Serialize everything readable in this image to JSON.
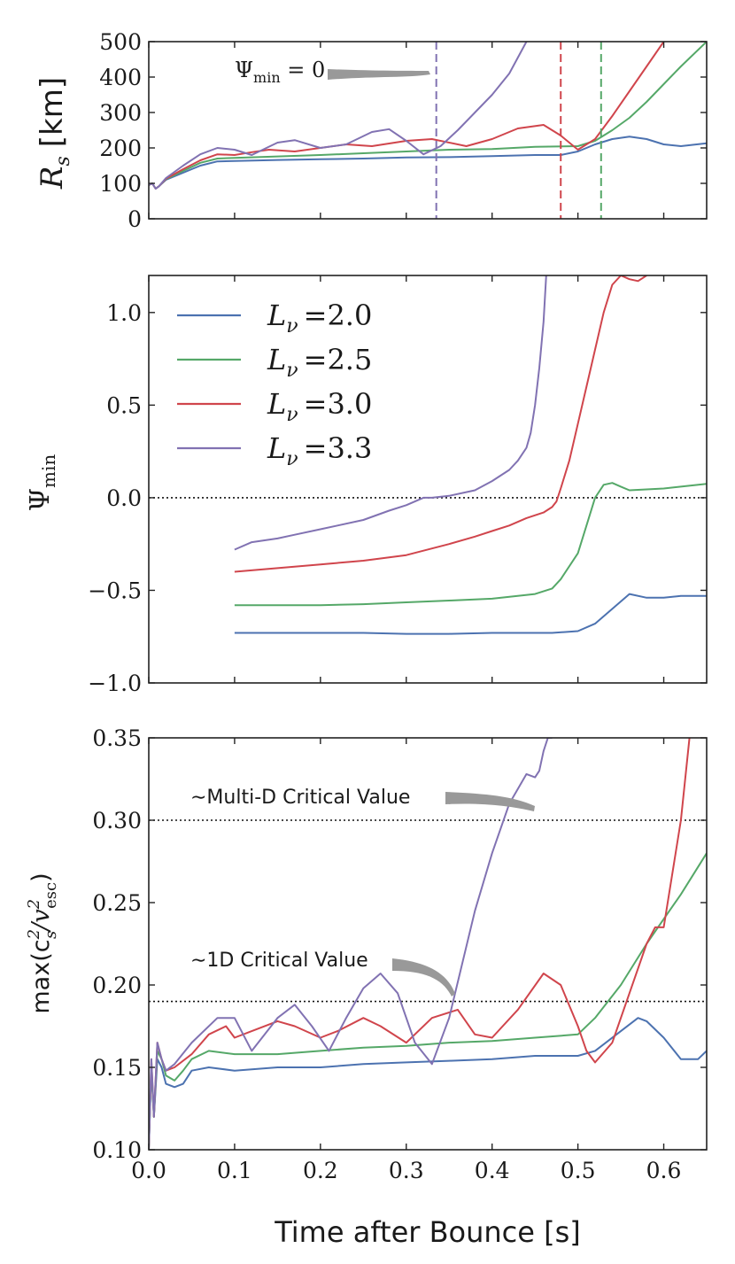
{
  "colors": {
    "L20": "#4c72b0",
    "L25": "#55a868",
    "L30": "#d0454c",
    "L33": "#8172b2",
    "arrow": "#999999"
  },
  "legend": [
    {
      "label": "L",
      "sub": "ν",
      "val": "=2.0",
      "color": "#4c72b0"
    },
    {
      "label": "L",
      "sub": "ν",
      "val": "=2.5",
      "color": "#55a868"
    },
    {
      "label": "L",
      "sub": "ν",
      "val": "=3.0",
      "color": "#d0454c"
    },
    {
      "label": "L",
      "sub": "ν",
      "val": "=3.3",
      "color": "#8172b2"
    }
  ],
  "chart_data": [
    {
      "type": "line",
      "panel": "top",
      "ylabel": "R",
      "ylabel_sub": "s",
      "ylabel_unit": "[km]",
      "xlim": [
        0,
        0.65
      ],
      "ylim": [
        0,
        500
      ],
      "yticks": [
        "0",
        "100",
        "200",
        "300",
        "400",
        "500"
      ],
      "ytick_values": [
        0,
        100,
        200,
        300,
        400,
        500
      ],
      "annotation": {
        "text": "Ψ",
        "sub": "min",
        "rest": " = 0",
        "x": 0.335,
        "y": 405
      },
      "vlines": [
        {
          "x": 0.335,
          "color": "#8172b2"
        },
        {
          "x": 0.48,
          "color": "#d0454c"
        },
        {
          "x": 0.527,
          "color": "#55a868"
        }
      ],
      "series": [
        {
          "name": "L=2.0",
          "color": "#4c72b0",
          "x": [
            0,
            0.004,
            0.008,
            0.012,
            0.02,
            0.04,
            0.06,
            0.08,
            0.1,
            0.15,
            0.2,
            0.25,
            0.3,
            0.35,
            0.4,
            0.45,
            0.48,
            0.5,
            0.52,
            0.54,
            0.56,
            0.58,
            0.6,
            0.62,
            0.65
          ],
          "y": [
            95,
            100,
            85,
            92,
            110,
            130,
            150,
            162,
            163,
            166,
            168,
            170,
            173,
            174,
            177,
            180,
            180,
            190,
            210,
            225,
            232,
            225,
            210,
            205,
            213
          ]
        },
        {
          "name": "L=2.5",
          "color": "#55a868",
          "x": [
            0,
            0.004,
            0.008,
            0.012,
            0.02,
            0.04,
            0.06,
            0.08,
            0.1,
            0.15,
            0.2,
            0.25,
            0.3,
            0.35,
            0.4,
            0.45,
            0.5,
            0.52,
            0.54,
            0.56,
            0.58,
            0.6,
            0.62,
            0.65
          ],
          "y": [
            95,
            100,
            85,
            92,
            112,
            135,
            158,
            170,
            172,
            176,
            180,
            185,
            190,
            195,
            197,
            203,
            205,
            220,
            250,
            285,
            330,
            380,
            430,
            500
          ]
        },
        {
          "name": "L=3.0",
          "color": "#d0454c",
          "x": [
            0,
            0.004,
            0.008,
            0.012,
            0.02,
            0.04,
            0.06,
            0.08,
            0.1,
            0.12,
            0.14,
            0.17,
            0.2,
            0.23,
            0.26,
            0.3,
            0.33,
            0.37,
            0.4,
            0.43,
            0.46,
            0.48,
            0.5,
            0.52,
            0.54,
            0.56,
            0.58,
            0.6
          ],
          "y": [
            95,
            100,
            85,
            92,
            113,
            140,
            165,
            182,
            180,
            188,
            195,
            190,
            200,
            210,
            205,
            220,
            225,
            205,
            225,
            255,
            265,
            235,
            195,
            225,
            290,
            360,
            430,
            500
          ]
        },
        {
          "name": "L=3.3",
          "color": "#8172b2",
          "x": [
            0,
            0.004,
            0.008,
            0.012,
            0.02,
            0.04,
            0.06,
            0.08,
            0.1,
            0.12,
            0.15,
            0.17,
            0.2,
            0.23,
            0.26,
            0.28,
            0.3,
            0.32,
            0.34,
            0.36,
            0.38,
            0.4,
            0.42,
            0.44
          ],
          "y": [
            95,
            100,
            85,
            92,
            115,
            150,
            182,
            200,
            195,
            180,
            215,
            222,
            200,
            210,
            245,
            253,
            220,
            182,
            205,
            250,
            300,
            350,
            410,
            500
          ]
        }
      ]
    },
    {
      "type": "line",
      "panel": "middle",
      "ylabel": "Ψ",
      "ylabel_sub": "min",
      "xlim": [
        0,
        0.65
      ],
      "ylim": [
        -1.0,
        1.2
      ],
      "yticks": [
        "−1.0",
        "−0.5",
        "0.0",
        "0.5",
        "1.0"
      ],
      "ytick_values": [
        -1.0,
        -0.5,
        0.0,
        0.5,
        1.0
      ],
      "hline": 0.0,
      "series": [
        {
          "name": "L=2.0",
          "color": "#4c72b0",
          "x": [
            0.1,
            0.15,
            0.2,
            0.25,
            0.3,
            0.35,
            0.4,
            0.45,
            0.47,
            0.5,
            0.52,
            0.54,
            0.56,
            0.58,
            0.6,
            0.62,
            0.65
          ],
          "y": [
            -0.73,
            -0.73,
            -0.73,
            -0.73,
            -0.735,
            -0.735,
            -0.73,
            -0.73,
            -0.73,
            -0.72,
            -0.68,
            -0.6,
            -0.52,
            -0.54,
            -0.54,
            -0.53,
            -0.53
          ]
        },
        {
          "name": "L=2.5",
          "color": "#55a868",
          "x": [
            0.1,
            0.15,
            0.2,
            0.25,
            0.3,
            0.35,
            0.4,
            0.45,
            0.47,
            0.48,
            0.5,
            0.51,
            0.52,
            0.53,
            0.54,
            0.55,
            0.56,
            0.58,
            0.6,
            0.62,
            0.65
          ],
          "y": [
            -0.58,
            -0.58,
            -0.58,
            -0.575,
            -0.565,
            -0.555,
            -0.545,
            -0.52,
            -0.49,
            -0.44,
            -0.3,
            -0.15,
            0.0,
            0.07,
            0.08,
            0.06,
            0.04,
            0.045,
            0.05,
            0.06,
            0.075
          ]
        },
        {
          "name": "L=3.0",
          "color": "#d0454c",
          "x": [
            0.1,
            0.15,
            0.2,
            0.25,
            0.3,
            0.35,
            0.38,
            0.4,
            0.42,
            0.44,
            0.46,
            0.47,
            0.475,
            0.48,
            0.49,
            0.5,
            0.51,
            0.52,
            0.53,
            0.54,
            0.55,
            0.56,
            0.57,
            0.58
          ],
          "y": [
            -0.4,
            -0.38,
            -0.36,
            -0.34,
            -0.31,
            -0.25,
            -0.21,
            -0.18,
            -0.15,
            -0.11,
            -0.08,
            -0.05,
            -0.02,
            0.05,
            0.2,
            0.4,
            0.6,
            0.8,
            1.0,
            1.15,
            1.2,
            1.18,
            1.17,
            1.2
          ]
        },
        {
          "name": "L=3.3",
          "color": "#8172b2",
          "x": [
            0.1,
            0.12,
            0.15,
            0.17,
            0.2,
            0.22,
            0.25,
            0.28,
            0.3,
            0.32,
            0.33,
            0.35,
            0.38,
            0.4,
            0.42,
            0.43,
            0.44,
            0.445,
            0.45,
            0.455,
            0.46,
            0.463
          ],
          "y": [
            -0.28,
            -0.24,
            -0.22,
            -0.2,
            -0.17,
            -0.15,
            -0.12,
            -0.07,
            -0.04,
            0.0,
            0.0,
            0.01,
            0.04,
            0.09,
            0.15,
            0.2,
            0.27,
            0.35,
            0.5,
            0.7,
            0.95,
            1.2
          ]
        }
      ]
    },
    {
      "type": "line",
      "panel": "bottom",
      "ylabel": "max(c",
      "ylabel_sup1": "2",
      "ylabel_sub1": "s",
      "ylabel_mid": "/v",
      "ylabel_sup2": "2",
      "ylabel_sub2": "esc",
      "ylabel_end": ")",
      "xlabel": "Time after Bounce [s]",
      "xlim": [
        0,
        0.65
      ],
      "ylim": [
        0.1,
        0.35
      ],
      "xticks": [
        "0.0",
        "0.1",
        "0.2",
        "0.3",
        "0.4",
        "0.5",
        "0.6"
      ],
      "xtick_values": [
        0.0,
        0.1,
        0.2,
        0.3,
        0.4,
        0.5,
        0.6
      ],
      "yticks": [
        "0.10",
        "0.15",
        "0.20",
        "0.25",
        "0.30",
        "0.35"
      ],
      "ytick_values": [
        0.1,
        0.15,
        0.2,
        0.25,
        0.3,
        0.35
      ],
      "hlines": [
        0.3,
        0.19
      ],
      "annotations": [
        {
          "text": "∼Multi-D Critical Value",
          "x": 0.44,
          "y": 0.3
        },
        {
          "text": "∼1D Critical Value",
          "x": 0.35,
          "y": 0.19
        }
      ],
      "series": [
        {
          "name": "L=2.0",
          "color": "#4c72b0",
          "x": [
            0,
            0.003,
            0.006,
            0.01,
            0.015,
            0.02,
            0.03,
            0.04,
            0.05,
            0.07,
            0.1,
            0.15,
            0.2,
            0.25,
            0.3,
            0.35,
            0.4,
            0.45,
            0.5,
            0.52,
            0.55,
            0.57,
            0.58,
            0.6,
            0.62,
            0.64,
            0.65
          ],
          "y": [
            0.1,
            0.15,
            0.12,
            0.155,
            0.15,
            0.14,
            0.138,
            0.14,
            0.148,
            0.15,
            0.148,
            0.15,
            0.15,
            0.152,
            0.153,
            0.154,
            0.155,
            0.157,
            0.157,
            0.16,
            0.172,
            0.18,
            0.178,
            0.168,
            0.155,
            0.155,
            0.16
          ]
        },
        {
          "name": "L=2.5",
          "color": "#55a868",
          "x": [
            0,
            0.003,
            0.006,
            0.01,
            0.015,
            0.02,
            0.03,
            0.04,
            0.05,
            0.07,
            0.1,
            0.15,
            0.2,
            0.25,
            0.3,
            0.35,
            0.4,
            0.45,
            0.5,
            0.52,
            0.55,
            0.58,
            0.6,
            0.62,
            0.65
          ],
          "y": [
            0.1,
            0.15,
            0.12,
            0.16,
            0.155,
            0.145,
            0.142,
            0.148,
            0.155,
            0.16,
            0.158,
            0.158,
            0.16,
            0.162,
            0.163,
            0.165,
            0.166,
            0.168,
            0.17,
            0.18,
            0.2,
            0.225,
            0.24,
            0.255,
            0.28
          ]
        },
        {
          "name": "L=3.0",
          "color": "#d0454c",
          "x": [
            0,
            0.003,
            0.006,
            0.01,
            0.015,
            0.02,
            0.03,
            0.05,
            0.07,
            0.09,
            0.1,
            0.12,
            0.15,
            0.17,
            0.2,
            0.22,
            0.25,
            0.27,
            0.3,
            0.33,
            0.36,
            0.38,
            0.4,
            0.43,
            0.46,
            0.48,
            0.5,
            0.51,
            0.52,
            0.54,
            0.56,
            0.58,
            0.59,
            0.6,
            0.62,
            0.63
          ],
          "y": [
            0.1,
            0.155,
            0.12,
            0.165,
            0.155,
            0.148,
            0.15,
            0.158,
            0.17,
            0.175,
            0.168,
            0.172,
            0.178,
            0.175,
            0.168,
            0.172,
            0.18,
            0.175,
            0.165,
            0.18,
            0.185,
            0.17,
            0.168,
            0.185,
            0.207,
            0.2,
            0.175,
            0.16,
            0.153,
            0.165,
            0.195,
            0.225,
            0.235,
            0.235,
            0.3,
            0.35
          ]
        },
        {
          "name": "L=3.3",
          "color": "#8172b2",
          "x": [
            0,
            0.003,
            0.006,
            0.01,
            0.015,
            0.02,
            0.03,
            0.05,
            0.08,
            0.1,
            0.12,
            0.15,
            0.17,
            0.19,
            0.21,
            0.23,
            0.25,
            0.27,
            0.29,
            0.31,
            0.33,
            0.35,
            0.38,
            0.4,
            0.42,
            0.44,
            0.45,
            0.455,
            0.46,
            0.465,
            0.47
          ],
          "y": [
            0.1,
            0.155,
            0.12,
            0.165,
            0.155,
            0.148,
            0.152,
            0.165,
            0.18,
            0.18,
            0.16,
            0.18,
            0.188,
            0.175,
            0.16,
            0.18,
            0.198,
            0.207,
            0.195,
            0.165,
            0.152,
            0.18,
            0.245,
            0.28,
            0.31,
            0.328,
            0.326,
            0.33,
            0.342,
            0.35,
            0.35
          ]
        }
      ]
    }
  ]
}
